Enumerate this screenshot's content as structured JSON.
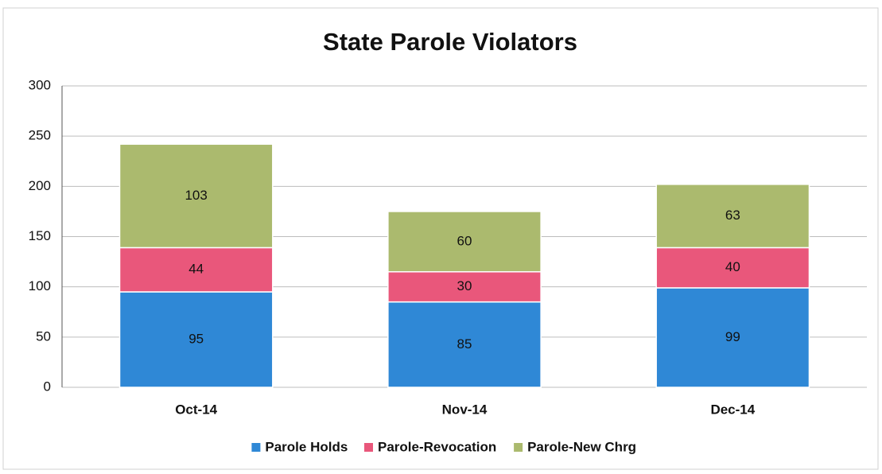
{
  "chart_data": {
    "type": "stacked_bar",
    "title": "State Parole Violators",
    "categories": [
      "Oct-14",
      "Nov-14",
      "Dec-14"
    ],
    "series": [
      {
        "name": "Parole Holds",
        "color": "#2f88d6",
        "values": [
          95,
          85,
          99
        ]
      },
      {
        "name": "Parole-Revocation",
        "color": "#e9577b",
        "values": [
          44,
          30,
          40
        ]
      },
      {
        "name": "Parole-New Chrg",
        "color": "#abba6e",
        "values": [
          103,
          60,
          63
        ]
      }
    ],
    "ylim": [
      0,
      300
    ],
    "yticks": [
      0,
      50,
      100,
      150,
      200,
      250,
      300
    ],
    "grid": true,
    "legend": "bottom"
  }
}
